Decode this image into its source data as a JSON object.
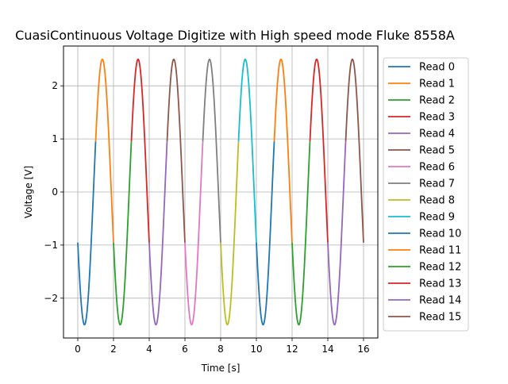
{
  "chart_data": {
    "type": "line",
    "title": "CuasiContinuous Voltage Digitize with High speed mode Fluke 8558A",
    "xlabel": "Time [s]",
    "ylabel": "Voltage [V]",
    "xlim": [
      -0.8,
      16.8
    ],
    "ylim": [
      -2.75,
      2.75
    ],
    "xticks": [
      0,
      2,
      4,
      6,
      8,
      10,
      12,
      14,
      16
    ],
    "xtick_labels": [
      "0",
      "2",
      "4",
      "6",
      "8",
      "10",
      "12",
      "14",
      "16"
    ],
    "yticks": [
      -2,
      -1,
      0,
      1,
      2
    ],
    "ytick_labels": [
      "−2",
      "−1",
      "0",
      "1",
      "2"
    ],
    "grid": true,
    "legend_position": "right, outside plot",
    "signal": {
      "amplitude": 2.5,
      "period_s": 2.0,
      "phase_rad": -2.75,
      "samples_per_read": 60
    },
    "series": [
      {
        "name": "Read 0",
        "color": "#1f77b4",
        "x_range": [
          0,
          1
        ]
      },
      {
        "name": "Read 1",
        "color": "#ff7f0e",
        "x_range": [
          1,
          2
        ]
      },
      {
        "name": "Read 2",
        "color": "#2ca02c",
        "x_range": [
          2,
          3
        ]
      },
      {
        "name": "Read 3",
        "color": "#d62728",
        "x_range": [
          3,
          4
        ]
      },
      {
        "name": "Read 4",
        "color": "#9467bd",
        "x_range": [
          4,
          5
        ]
      },
      {
        "name": "Read 5",
        "color": "#8c564b",
        "x_range": [
          5,
          6
        ]
      },
      {
        "name": "Read 6",
        "color": "#e377c2",
        "x_range": [
          6,
          7
        ]
      },
      {
        "name": "Read 7",
        "color": "#7f7f7f",
        "x_range": [
          7,
          8
        ]
      },
      {
        "name": "Read 8",
        "color": "#bcbd22",
        "x_range": [
          8,
          9
        ]
      },
      {
        "name": "Read 9",
        "color": "#17becf",
        "x_range": [
          9,
          10
        ]
      },
      {
        "name": "Read 10",
        "color": "#1f77b4",
        "x_range": [
          10,
          11
        ]
      },
      {
        "name": "Read 11",
        "color": "#ff7f0e",
        "x_range": [
          11,
          12
        ]
      },
      {
        "name": "Read 12",
        "color": "#2ca02c",
        "x_range": [
          12,
          13
        ]
      },
      {
        "name": "Read 13",
        "color": "#d62728",
        "x_range": [
          13,
          14
        ]
      },
      {
        "name": "Read 14",
        "color": "#9467bd",
        "x_range": [
          14,
          15
        ]
      },
      {
        "name": "Read 15",
        "color": "#8c564b",
        "x_range": [
          15,
          16
        ]
      }
    ]
  }
}
